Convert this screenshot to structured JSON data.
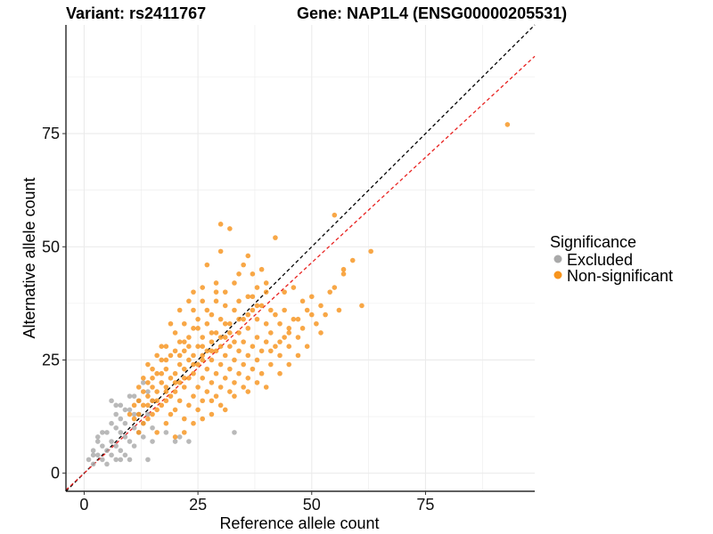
{
  "chart_data": {
    "type": "scatter",
    "title_left": "Variant: rs2411767",
    "title_right": "Gene: NAP1L4 (ENSG00000205531)",
    "xlabel": "Reference allele count",
    "ylabel": "Alternative allele count",
    "xlim": [
      -4,
      99
    ],
    "ylim": [
      -4,
      99
    ],
    "xticks": [
      0,
      25,
      50,
      75
    ],
    "yticks": [
      0,
      25,
      50,
      75
    ],
    "grid": true,
    "legend": {
      "title": "Significance",
      "position": "right",
      "entries": [
        {
          "label": "Excluded",
          "color": "#a9a9a9"
        },
        {
          "label": "Non-significant",
          "color": "#f7941d"
        }
      ]
    },
    "reference_lines": [
      {
        "name": "identity",
        "slope": 1.0,
        "intercept": 0,
        "color": "#000000",
        "style": "dashed"
      },
      {
        "name": "fitted",
        "slope": 0.93,
        "intercept": 0,
        "color": "#e8211f",
        "style": "dashed"
      }
    ],
    "series": [
      {
        "name": "Excluded",
        "color": "#a9a9a9",
        "points": [
          [
            1,
            3
          ],
          [
            2,
            2
          ],
          [
            2,
            5
          ],
          [
            3,
            4
          ],
          [
            3,
            8
          ],
          [
            4,
            3
          ],
          [
            4,
            6
          ],
          [
            5,
            2
          ],
          [
            5,
            5
          ],
          [
            5,
            9
          ],
          [
            6,
            4
          ],
          [
            6,
            7
          ],
          [
            6,
            11
          ],
          [
            7,
            3
          ],
          [
            7,
            6
          ],
          [
            7,
            10
          ],
          [
            7,
            13
          ],
          [
            8,
            5
          ],
          [
            8,
            9
          ],
          [
            8,
            12
          ],
          [
            8,
            15
          ],
          [
            9,
            4
          ],
          [
            9,
            8
          ],
          [
            9,
            11
          ],
          [
            10,
            7
          ],
          [
            10,
            14
          ],
          [
            10,
            17
          ],
          [
            11,
            6
          ],
          [
            11,
            10
          ],
          [
            11,
            13
          ],
          [
            12,
            9
          ],
          [
            12,
            16
          ],
          [
            13,
            11
          ],
          [
            13,
            20
          ],
          [
            14,
            13
          ],
          [
            14,
            18
          ],
          [
            15,
            10
          ],
          [
            15,
            16
          ],
          [
            6,
            16
          ],
          [
            4,
            9
          ],
          [
            3,
            7
          ],
          [
            2,
            4
          ],
          [
            10,
            3
          ],
          [
            14,
            3
          ],
          [
            13,
            8
          ],
          [
            15,
            7
          ],
          [
            18,
            9
          ],
          [
            20,
            7
          ],
          [
            21,
            8
          ],
          [
            23,
            7
          ],
          [
            33,
            9
          ],
          [
            8,
            3
          ],
          [
            9,
            14
          ],
          [
            11,
            17
          ],
          [
            12,
            13
          ],
          [
            7,
            15
          ]
        ]
      },
      {
        "name": "Non-significant",
        "color": "#f7941d",
        "points": [
          [
            12,
            9
          ],
          [
            12,
            16
          ],
          [
            13,
            11
          ],
          [
            13,
            15
          ],
          [
            13,
            18
          ],
          [
            14,
            12
          ],
          [
            14,
            17
          ],
          [
            14,
            20
          ],
          [
            15,
            13
          ],
          [
            15,
            16
          ],
          [
            15,
            19
          ],
          [
            15,
            23
          ],
          [
            16,
            14
          ],
          [
            16,
            18
          ],
          [
            16,
            22
          ],
          [
            17,
            15
          ],
          [
            17,
            20
          ],
          [
            17,
            25
          ],
          [
            18,
            16
          ],
          [
            18,
            19
          ],
          [
            18,
            23
          ],
          [
            18,
            28
          ],
          [
            19,
            17
          ],
          [
            19,
            21
          ],
          [
            19,
            26
          ],
          [
            20,
            14
          ],
          [
            20,
            18
          ],
          [
            20,
            22
          ],
          [
            20,
            27
          ],
          [
            20,
            31
          ],
          [
            21,
            16
          ],
          [
            21,
            20
          ],
          [
            21,
            24
          ],
          [
            21,
            29
          ],
          [
            22,
            12
          ],
          [
            22,
            19
          ],
          [
            22,
            23
          ],
          [
            22,
            27
          ],
          [
            22,
            33
          ],
          [
            23,
            15
          ],
          [
            23,
            21
          ],
          [
            23,
            25
          ],
          [
            23,
            30
          ],
          [
            24,
            17
          ],
          [
            24,
            22
          ],
          [
            24,
            26
          ],
          [
            24,
            32
          ],
          [
            24,
            36
          ],
          [
            25,
            14
          ],
          [
            25,
            19
          ],
          [
            25,
            24
          ],
          [
            25,
            28
          ],
          [
            25,
            34
          ],
          [
            26,
            16
          ],
          [
            26,
            21
          ],
          [
            26,
            25
          ],
          [
            26,
            30
          ],
          [
            26,
            38
          ],
          [
            27,
            18
          ],
          [
            27,
            23
          ],
          [
            27,
            27
          ],
          [
            27,
            33
          ],
          [
            28,
            13
          ],
          [
            28,
            20
          ],
          [
            28,
            25
          ],
          [
            28,
            29
          ],
          [
            28,
            35
          ],
          [
            29,
            17
          ],
          [
            29,
            22
          ],
          [
            29,
            27
          ],
          [
            29,
            31
          ],
          [
            29,
            40
          ],
          [
            30,
            15
          ],
          [
            30,
            19
          ],
          [
            30,
            24
          ],
          [
            30,
            28
          ],
          [
            30,
            34
          ],
          [
            30,
            55
          ],
          [
            31,
            21
          ],
          [
            31,
            26
          ],
          [
            31,
            30
          ],
          [
            31,
            37
          ],
          [
            32,
            18
          ],
          [
            32,
            23
          ],
          [
            32,
            28
          ],
          [
            32,
            33
          ],
          [
            33,
            20
          ],
          [
            33,
            25
          ],
          [
            33,
            29
          ],
          [
            33,
            36
          ],
          [
            34,
            22
          ],
          [
            34,
            27
          ],
          [
            34,
            31
          ],
          [
            35,
            19
          ],
          [
            35,
            24
          ],
          [
            35,
            29
          ],
          [
            35,
            34
          ],
          [
            36,
            21
          ],
          [
            36,
            26
          ],
          [
            36,
            32
          ],
          [
            37,
            23
          ],
          [
            37,
            28
          ],
          [
            37,
            36
          ],
          [
            38,
            25
          ],
          [
            38,
            30
          ],
          [
            38,
            34
          ],
          [
            39,
            22
          ],
          [
            39,
            27
          ],
          [
            40,
            29
          ],
          [
            40,
            33
          ],
          [
            41,
            24
          ],
          [
            41,
            31
          ],
          [
            42,
            28
          ],
          [
            42,
            35
          ],
          [
            43,
            26
          ],
          [
            43,
            33
          ],
          [
            44,
            30
          ],
          [
            44,
            36
          ],
          [
            45,
            28
          ],
          [
            45,
            32
          ],
          [
            46,
            34
          ],
          [
            47,
            30
          ],
          [
            48,
            32
          ],
          [
            49,
            28
          ],
          [
            50,
            35
          ],
          [
            51,
            33
          ],
          [
            52,
            37
          ],
          [
            53,
            35
          ],
          [
            54,
            40
          ],
          [
            55,
            41
          ],
          [
            56,
            36
          ],
          [
            57,
            45
          ],
          [
            59,
            47
          ],
          [
            61,
            37
          ],
          [
            63,
            49
          ],
          [
            93,
            77
          ],
          [
            55,
            57
          ],
          [
            57,
            44
          ],
          [
            42,
            52
          ],
          [
            39,
            45
          ],
          [
            36,
            48
          ],
          [
            32,
            54
          ],
          [
            30,
            49
          ],
          [
            27,
            46
          ],
          [
            29,
            42
          ],
          [
            24,
            40
          ],
          [
            19,
            33
          ],
          [
            17,
            28
          ],
          [
            21,
            36
          ],
          [
            23,
            38
          ],
          [
            26,
            41
          ],
          [
            34,
            44
          ],
          [
            37,
            44
          ],
          [
            40,
            42
          ],
          [
            46,
            41
          ],
          [
            41,
            36
          ],
          [
            44,
            40
          ],
          [
            48,
            38
          ],
          [
            50,
            39
          ],
          [
            52,
            31
          ],
          [
            13,
            21
          ],
          [
            11,
            15
          ],
          [
            12,
            19
          ],
          [
            10,
            13
          ],
          [
            16,
            9
          ],
          [
            18,
            11
          ],
          [
            20,
            8
          ],
          [
            22,
            9
          ],
          [
            19,
            13
          ],
          [
            24,
            11
          ],
          [
            26,
            12
          ],
          [
            28,
            16
          ],
          [
            31,
            14
          ],
          [
            33,
            17
          ],
          [
            36,
            18
          ],
          [
            38,
            20
          ],
          [
            40,
            19
          ],
          [
            43,
            22
          ],
          [
            45,
            24
          ],
          [
            47,
            26
          ],
          [
            14,
            24
          ],
          [
            16,
            26
          ],
          [
            22,
            29
          ],
          [
            25,
            32
          ],
          [
            27,
            36
          ],
          [
            29,
            38
          ],
          [
            31,
            40
          ],
          [
            33,
            42
          ],
          [
            35,
            46
          ],
          [
            37,
            39
          ],
          [
            39,
            37
          ],
          [
            41,
            27
          ],
          [
            43,
            29
          ],
          [
            45,
            31
          ],
          [
            47,
            34
          ],
          [
            49,
            36
          ],
          [
            36,
            39
          ],
          [
            34,
            38
          ],
          [
            38,
            41
          ],
          [
            31,
            33
          ],
          [
            28,
            31
          ],
          [
            26,
            28
          ],
          [
            23,
            28
          ],
          [
            21,
            26
          ],
          [
            18,
            25
          ],
          [
            17,
            22
          ],
          [
            15,
            21
          ],
          [
            14,
            15
          ],
          [
            12,
            13
          ],
          [
            11,
            12
          ],
          [
            16,
            16
          ],
          [
            18,
            18
          ],
          [
            20,
            20
          ],
          [
            22,
            21
          ],
          [
            24,
            24
          ],
          [
            26,
            26
          ],
          [
            28,
            27
          ],
          [
            30,
            30
          ],
          [
            32,
            31
          ],
          [
            34,
            34
          ],
          [
            36,
            35
          ],
          [
            38,
            37
          ],
          [
            40,
            40
          ]
        ]
      }
    ]
  }
}
